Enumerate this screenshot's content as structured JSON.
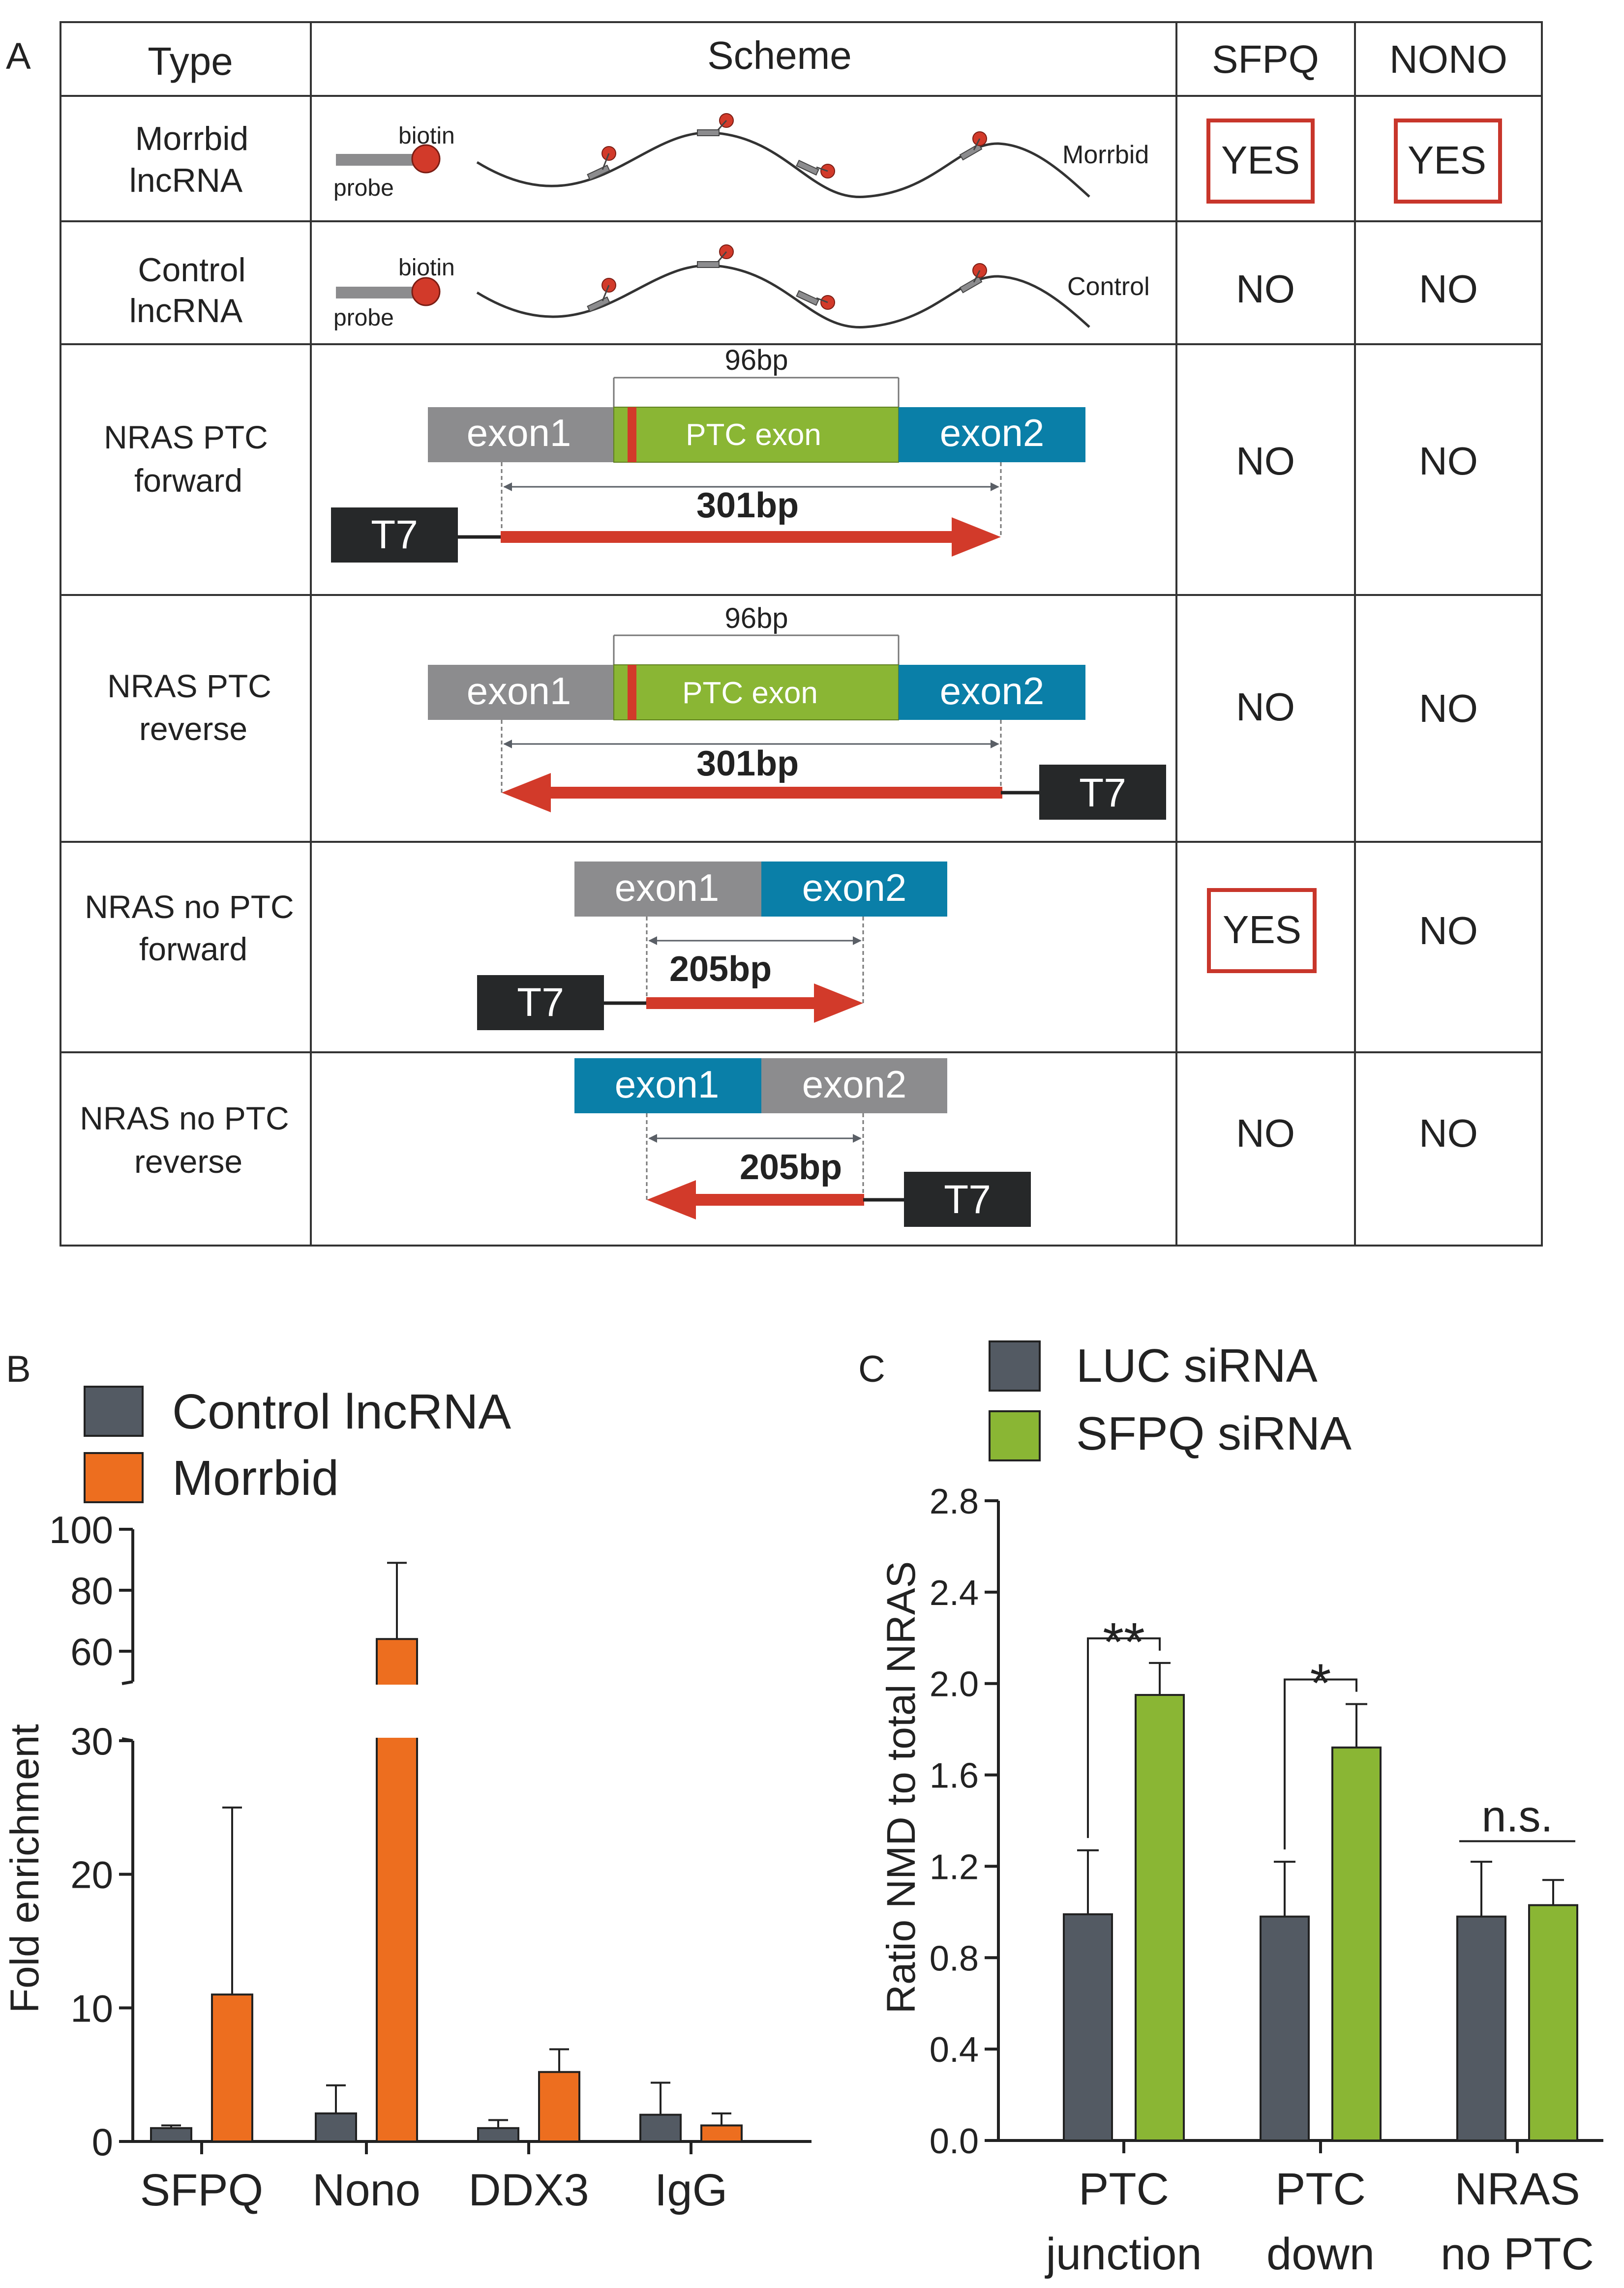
{
  "panel_labels": {
    "a": "A",
    "b": "B",
    "c": "C"
  },
  "colors": {
    "grey_exon": "#8c8c8e",
    "ptc_green": "#8ab634",
    "blue_exon": "#0a7fa8",
    "arrow_red": "#d23a2a",
    "t7_box": "#262829",
    "yes_box": "#c8362b",
    "bead_red": "#d23a2a",
    "control_bar": "#535a63",
    "morrbid_bar": "#ed6e1f",
    "luc_bar": "#535a63",
    "sfpq_bar": "#8ab634"
  },
  "table": {
    "headers": {
      "type": "Type",
      "scheme": "Scheme",
      "sfpq": "SFPQ",
      "nono": "NONO"
    },
    "rows": [
      {
        "type_line1": "Morrbid",
        "type_line2": "lncRNA",
        "sfpq": "YES",
        "nono": "YES",
        "labels": {
          "biotin": "biotin",
          "probe": "probe",
          "rna": "Morrbid"
        }
      },
      {
        "type_line1": "Control",
        "type_line2": "lncRNA",
        "sfpq": "NO",
        "nono": "NO",
        "labels": {
          "biotin": "biotin",
          "probe": "probe",
          "rna": "Control"
        }
      },
      {
        "type_line1": "NRAS PTC",
        "type_line2": "forward",
        "sfpq": "NO",
        "nono": "NO",
        "labels": {
          "exon1": "exon1",
          "ptc": "PTC exon",
          "exon2": "exon2",
          "bp_top": "96bp",
          "bp": "301bp",
          "t7": "T7"
        }
      },
      {
        "type_line1": "NRAS PTC",
        "type_line2": "reverse",
        "sfpq": "NO",
        "nono": "NO",
        "labels": {
          "exon1": "exon1",
          "ptc": "PTC exon",
          "exon2": "exon2",
          "bp_top": "96bp",
          "bp": "301bp",
          "t7": "T7"
        }
      },
      {
        "type_line1": "NRAS no PTC",
        "type_line2": "forward",
        "sfpq": "YES",
        "nono": "NO",
        "labels": {
          "exon1": "exon1",
          "exon2": "exon2",
          "bp": "205bp",
          "t7": "T7"
        }
      },
      {
        "type_line1": "NRAS no PTC",
        "type_line2": "reverse",
        "sfpq": "NO",
        "nono": "NO",
        "labels": {
          "exon1": "exon1",
          "exon2": "exon2",
          "bp": "205bp",
          "t7": "T7"
        }
      }
    ]
  },
  "chart_data": [
    {
      "type": "bar",
      "panel": "B",
      "categories": [
        "SFPQ",
        "Nono",
        "DDX3",
        "IgG"
      ],
      "series": [
        {
          "name": "Control lncRNA",
          "values": [
            1.0,
            2.1,
            1.0,
            2.0
          ],
          "errors": [
            0.2,
            2.1,
            0.6,
            2.4
          ]
        },
        {
          "name": "Morrbid",
          "values": [
            11.0,
            64.0,
            5.2,
            1.2
          ],
          "errors": [
            14.0,
            25.0,
            1.7,
            0.9
          ]
        }
      ],
      "ylabel": "Fold enrichment",
      "xlabel": "",
      "title": "",
      "axis_break": {
        "lower": [
          0,
          30
        ],
        "upper": [
          50,
          100
        ]
      },
      "ticks_lower": [
        "0",
        "10",
        "20",
        "30"
      ],
      "ticks_upper": [
        "60",
        "80",
        "100"
      ],
      "legend_position": "top-left",
      "grid": false
    },
    {
      "type": "bar",
      "panel": "C",
      "categories": [
        [
          "PTC",
          "junction"
        ],
        [
          "PTC",
          "down"
        ],
        [
          "NRAS",
          "no PTC"
        ]
      ],
      "series": [
        {
          "name": "LUC siRNA",
          "values": [
            0.99,
            0.98,
            0.98
          ],
          "errors": [
            0.28,
            0.24,
            0.24
          ]
        },
        {
          "name": "SFPQ siRNA",
          "values": [
            1.95,
            1.72,
            1.03
          ],
          "errors": [
            0.14,
            0.19,
            0.11
          ]
        }
      ],
      "significance": [
        "**",
        "*",
        "n.s."
      ],
      "ylabel": "Ratio NMD to total NRAS",
      "xlabel": "",
      "title": "",
      "ylim": [
        0,
        2.8
      ],
      "ticks": [
        "0.0",
        "0.4",
        "0.8",
        "1.2",
        "1.6",
        "2.0",
        "2.4",
        "2.8"
      ],
      "legend_position": "top-left",
      "grid": false
    }
  ]
}
